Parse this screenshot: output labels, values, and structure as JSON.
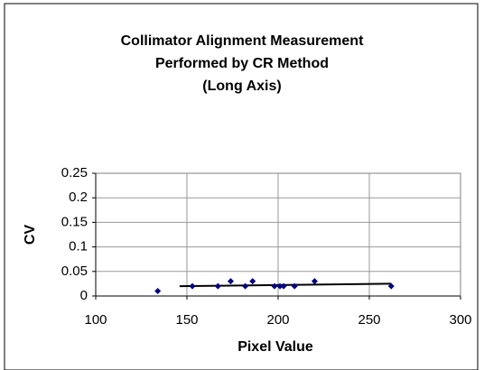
{
  "chart_data": {
    "type": "scatter",
    "title": [
      "Collimator Alignment Measurement",
      "Performed by CR Method",
      "(Long Axis)"
    ],
    "x_label": "Pixel Value",
    "y_label": "CV",
    "x": [
      134,
      153,
      167,
      174,
      182,
      186,
      198,
      201,
      203,
      209,
      220,
      262
    ],
    "values": [
      0.01,
      0.02,
      0.02,
      0.03,
      0.02,
      0.03,
      0.02,
      0.02,
      0.02,
      0.02,
      0.03,
      0.02
    ],
    "color": "#000080",
    "trendline": {
      "x": [
        146,
        262
      ],
      "values": [
        0.02,
        0.025
      ],
      "color": "#000000"
    },
    "xlim": [
      100,
      300
    ],
    "xticks": [
      100,
      150,
      200,
      250,
      300
    ],
    "ylim": [
      0,
      0.25
    ],
    "yticks": [
      0,
      0.05,
      0.1,
      0.15,
      0.2,
      0.25
    ],
    "grid": true
  }
}
